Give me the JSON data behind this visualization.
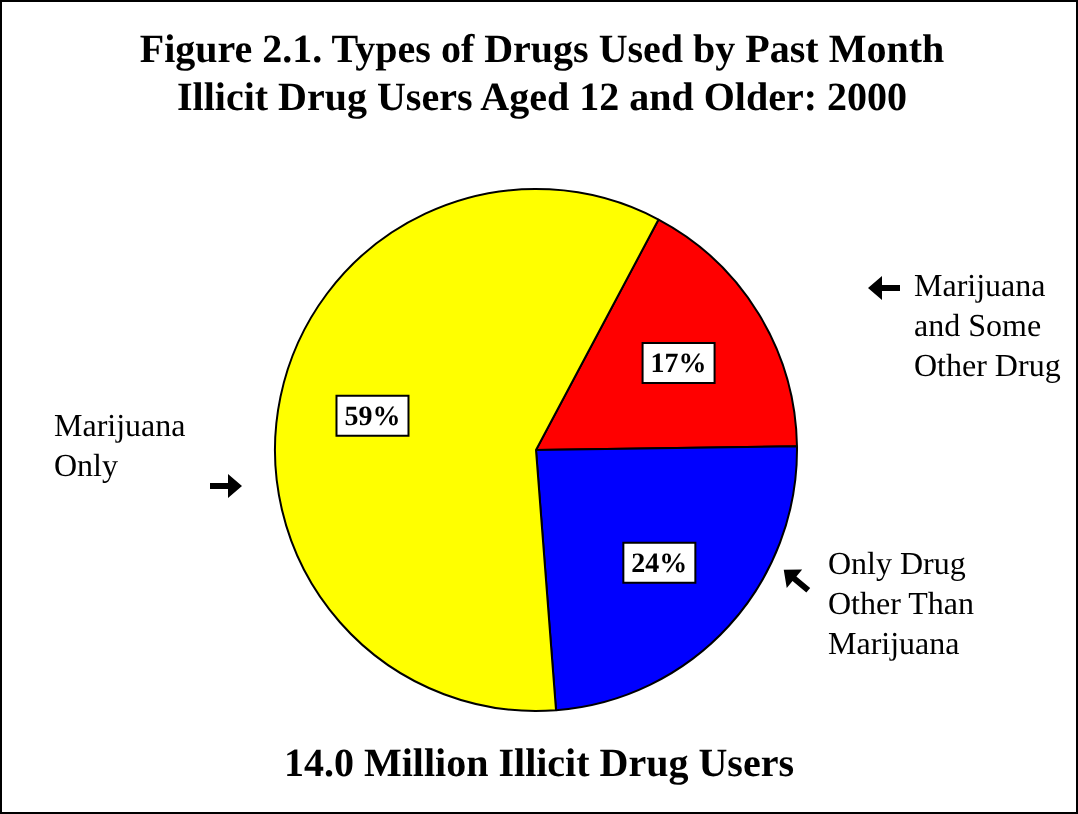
{
  "chart_data": {
    "type": "pie",
    "title": "Figure 2.1. Types of Drugs Used by Past Month Illicit Drug Users Aged 12 and Older: 2000",
    "subtitle": "14.0 Million Illicit Drug Users",
    "categories": [
      "Marijuana and Some Other Drug",
      "Only Drug Other Than Marijuana",
      "Marijuana Only"
    ],
    "values": [
      17,
      24,
      59
    ],
    "colors": [
      "#ff0000",
      "#0000ff",
      "#ffff00"
    ],
    "value_labels": [
      "17%",
      "24%",
      "59%"
    ],
    "legend": false
  }
}
